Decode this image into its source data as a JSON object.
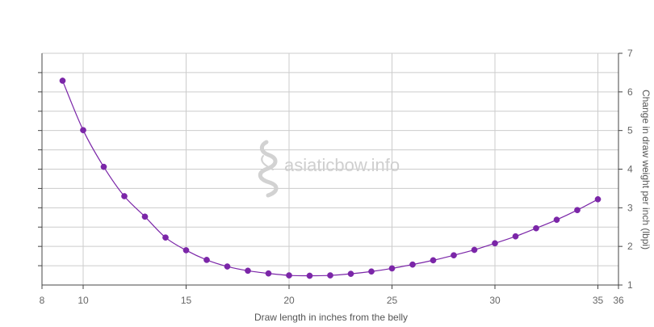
{
  "chart_data": {
    "type": "line",
    "title": "",
    "xlabel": "Draw length in inches from the belly",
    "ylabel": "Change in draw weight per inch (lbpi)",
    "xlim": [
      8,
      36
    ],
    "ylim": [
      1,
      7
    ],
    "x_ticks": [
      8,
      10,
      15,
      20,
      25,
      30,
      35,
      36
    ],
    "y_ticks": [
      1,
      2,
      3,
      4,
      5,
      6,
      7
    ],
    "y_axis_side": "right",
    "grid": true,
    "legend": "none",
    "watermark": "asiaticbow.info",
    "colors": {
      "series": "#7b26a8",
      "grid": "#cccccc",
      "axis": "#444444",
      "watermark": "#cfcfcf"
    },
    "series": [
      {
        "x": [
          9,
          10,
          11,
          12,
          13,
          14,
          15,
          16,
          17,
          18,
          19,
          20,
          21,
          22,
          23,
          24,
          25,
          26,
          27,
          28,
          29,
          30,
          31,
          32,
          33,
          34,
          35
        ],
        "y": [
          6.29,
          5.01,
          4.06,
          3.3,
          2.77,
          2.23,
          1.9,
          1.65,
          1.48,
          1.37,
          1.3,
          1.25,
          1.24,
          1.25,
          1.29,
          1.35,
          1.43,
          1.53,
          1.64,
          1.77,
          1.91,
          2.08,
          2.26,
          2.47,
          2.69,
          2.94,
          3.22
        ]
      }
    ]
  }
}
